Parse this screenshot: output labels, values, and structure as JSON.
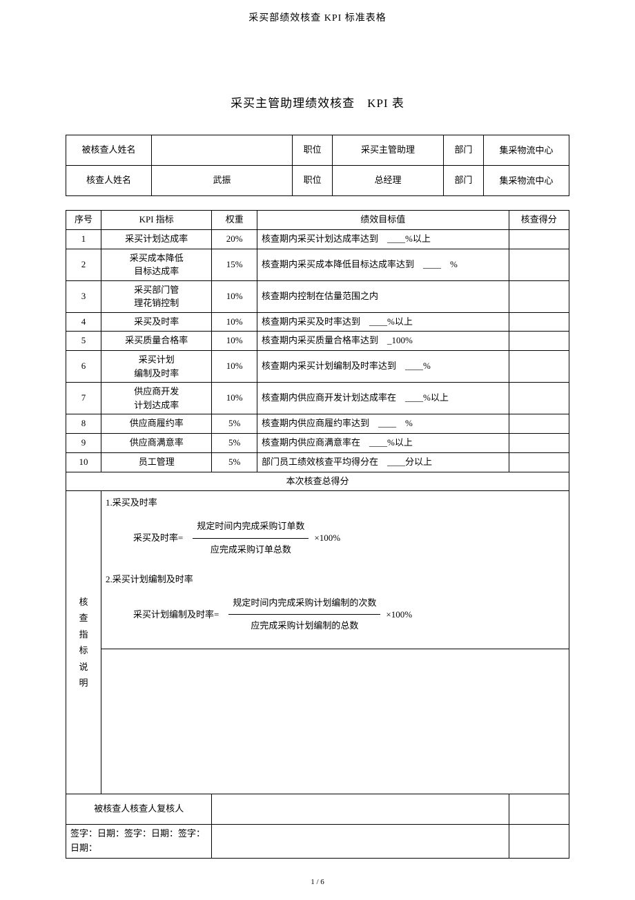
{
  "header": "采买部绩效核查 KPI 标准表格",
  "title": "采买主管助理绩效核查　KPI 表",
  "info": {
    "r1c1": "被核查人姓名",
    "r1c2": "",
    "r1c3": "职位",
    "r1c4": "采买主管助理",
    "r1c5": "部门",
    "r1c6": "集采物流中心",
    "r2c1": "核查人姓名",
    "r2c2": "武振",
    "r2c3": "职位",
    "r2c4": "总经理",
    "r2c5": "部门",
    "r2c6": "集采物流中心"
  },
  "kpi_headers": {
    "no": "序号",
    "name": "KPI 指标",
    "weight": "权重",
    "target": "绩效目标值",
    "score": "核查得分"
  },
  "kpi": [
    {
      "no": "1",
      "name": "采买计划达成率",
      "weight": "20%",
      "target": "核查期内采买计划达成率达到　____%以上"
    },
    {
      "no": "2",
      "name1": "采买成本降低",
      "name2": "目标达成率",
      "weight": "15%",
      "target": "核查期内采买成本降低目标达成率达到　____　%"
    },
    {
      "no": "3",
      "name1": "采买部门管",
      "name2": "理花销控制",
      "weight": "10%",
      "target": "核查期内控制在估量范围之内"
    },
    {
      "no": "4",
      "name": "采买及时率",
      "weight": "10%",
      "target": "核查期内采买及时率达到　____%以上"
    },
    {
      "no": "5",
      "name": "采买质量合格率",
      "weight": "10%",
      "target": "核查期内采买质量合格率达到　_100%"
    },
    {
      "no": "6",
      "name1": "采买计划",
      "name2": "编制及时率",
      "weight": "10%",
      "target": "核查期内采买计划编制及时率达到　____%"
    },
    {
      "no": "7",
      "name1": "供应商开发",
      "name2": "计划达成率",
      "weight": "10%",
      "target": "核查期内供应商开发计划达成率在　____%以上"
    },
    {
      "no": "8",
      "name": "供应商履约率",
      "weight": "5%",
      "target": "核查期内供应商履约率达到　____　%"
    },
    {
      "no": "9",
      "name": "供应商满意率",
      "weight": "5%",
      "target": "核查期内供应商满意率在　____%以上"
    },
    {
      "no": "10",
      "name": "员工管理",
      "weight": "5%",
      "target": "部门员工绩效核查平均得分在　____分以上"
    }
  ],
  "total_label": "本次核查总得分",
  "explain": {
    "label": "核查指标说明",
    "item1": "1.采买及时率",
    "f1_label": "采买及时率=",
    "f1_top": "规定时间内完成采购订单数",
    "f1_bot": "应完成采购订单总数",
    "f1_suffix": "×100%",
    "item2": "2.采买计划编制及时率",
    "f2_label": "采买计划编制及时率=",
    "f2_top": "规定时间内完成采购计划编制的次数",
    "f2_bot": "应完成采购计划编制的总数",
    "f2_suffix": "×100%"
  },
  "sig": {
    "row1": "被核查人核查人复核人",
    "row2": "签字：日期：签字：日期：签字：日期："
  },
  "page_num": "1 / 6",
  "colors": {
    "text": "#000000",
    "bg": "#ffffff",
    "border": "#000000"
  }
}
